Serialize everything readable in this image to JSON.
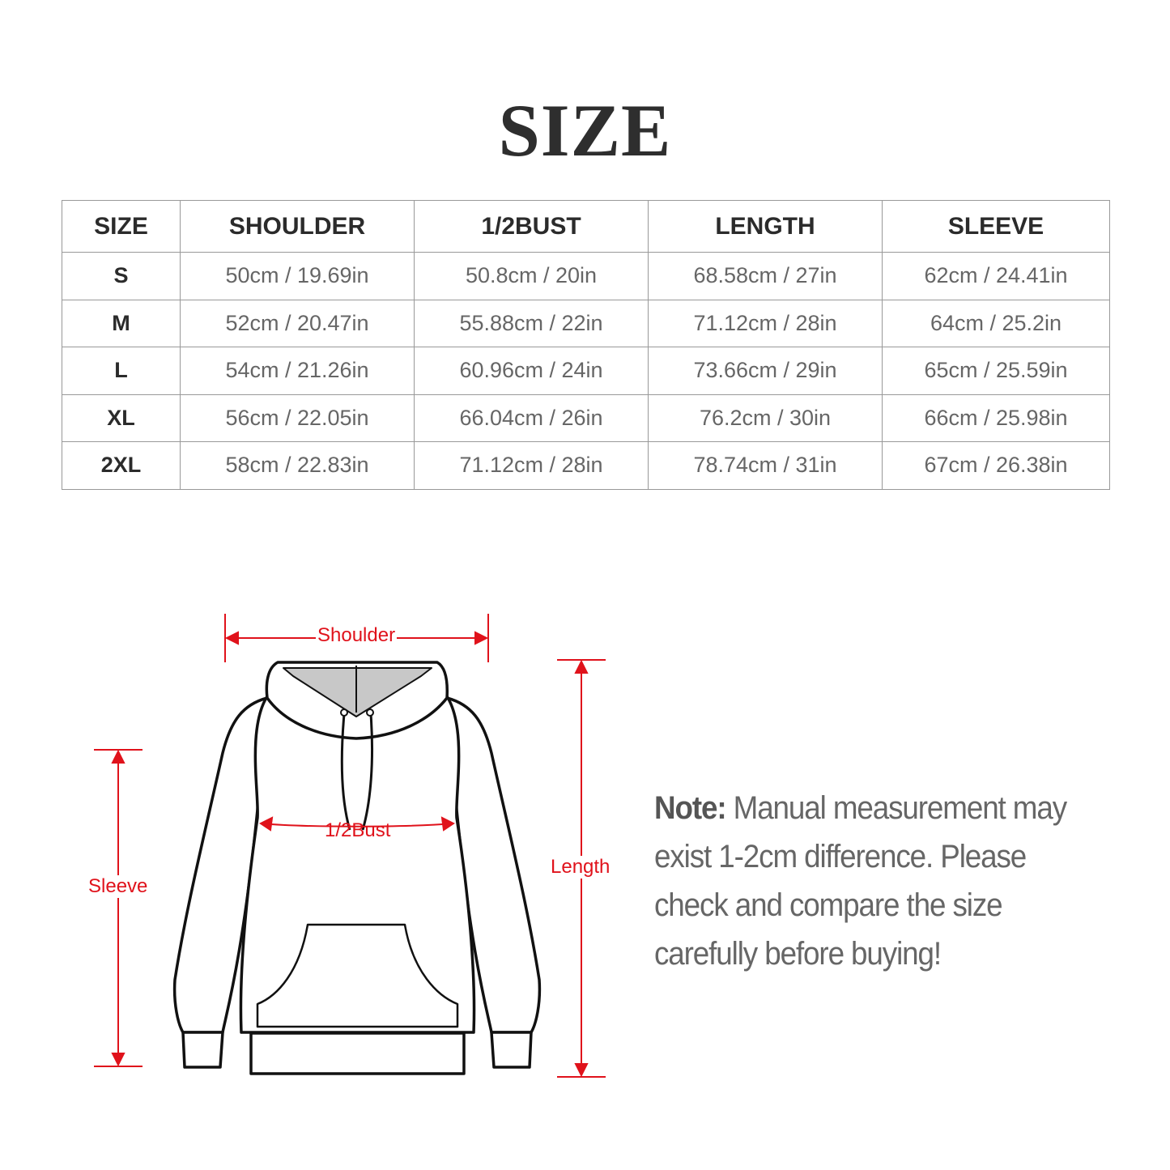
{
  "title": "SIZE",
  "table": {
    "headers": [
      "SIZE",
      "SHOULDER",
      "1/2BUST",
      "LENGTH",
      "SLEEVE"
    ],
    "rows": [
      [
        "S",
        "50cm / 19.69in",
        "50.8cm / 20in",
        "68.58cm / 27in",
        "62cm / 24.41in"
      ],
      [
        "M",
        "52cm / 20.47in",
        "55.88cm / 22in",
        "71.12cm / 28in",
        "64cm / 25.2in"
      ],
      [
        "L",
        "54cm / 21.26in",
        "60.96cm / 24in",
        "73.66cm / 29in",
        "65cm / 25.59in"
      ],
      [
        "XL",
        "56cm / 22.05in",
        "66.04cm / 26in",
        "76.2cm / 30in",
        "66cm / 25.98in"
      ],
      [
        "2XL",
        "58cm / 22.83in",
        "71.12cm / 28in",
        "78.74cm / 31in",
        "67cm / 26.38in"
      ]
    ]
  },
  "diagram": {
    "shoulder": "Shoulder",
    "bust": "1/2Bust",
    "sleeve": "Sleeve",
    "length": "Length",
    "annotation_color": "#e0121b"
  },
  "note": {
    "label": "Note:",
    "text": " Manual measurement may exist 1-2cm difference. Please check and compare the size carefully before buying!"
  }
}
